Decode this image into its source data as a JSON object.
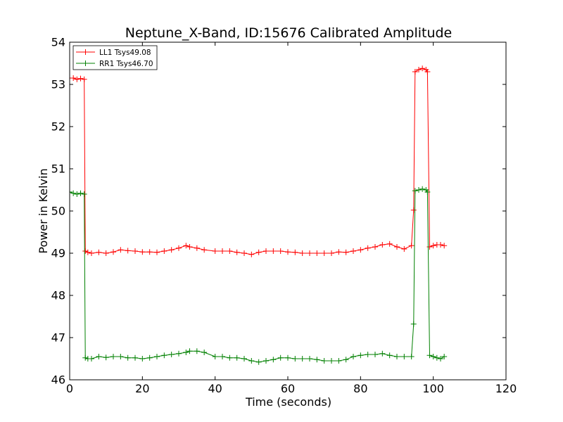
{
  "chart_data": {
    "type": "line",
    "title": "Neptune_X-Band, ID:15676 Calibrated Amplitude",
    "xlabel": "Time (seconds)",
    "ylabel": "Power in Kelvin",
    "xlim": [
      0,
      120
    ],
    "ylim": [
      46,
      54
    ],
    "xticks": [
      0,
      20,
      40,
      60,
      80,
      100,
      120
    ],
    "yticks": [
      46,
      47,
      48,
      49,
      50,
      51,
      52,
      53,
      54
    ],
    "grid": false,
    "legend_position": "top-left",
    "marker": "plus",
    "series": [
      {
        "name": "LL1 Tsys49.08",
        "color": "#ff0000",
        "x": [
          0,
          1,
          2,
          3,
          4,
          4.3,
          5,
          6,
          8,
          10,
          12,
          14,
          16,
          18,
          20,
          22,
          24,
          26,
          28,
          30,
          32,
          33,
          35,
          37,
          40,
          42,
          44,
          46,
          48,
          50,
          52,
          54,
          56,
          58,
          60,
          62,
          64,
          66,
          68,
          70,
          72,
          74,
          76,
          78,
          80,
          82,
          84,
          86,
          88,
          90,
          92,
          94,
          94.6,
          95,
          96,
          97,
          98,
          98.4,
          99,
          100,
          101,
          102,
          103
        ],
        "y": [
          53.15,
          53.15,
          53.12,
          53.14,
          53.12,
          49.05,
          49.02,
          49.0,
          49.02,
          49.0,
          49.03,
          49.08,
          49.06,
          49.05,
          49.03,
          49.03,
          49.02,
          49.05,
          49.08,
          49.12,
          49.18,
          49.15,
          49.12,
          49.08,
          49.05,
          49.05,
          49.05,
          49.02,
          49.0,
          48.97,
          49.02,
          49.05,
          49.05,
          49.05,
          49.03,
          49.02,
          49.0,
          49.0,
          49.0,
          49.0,
          49.0,
          49.03,
          49.02,
          49.05,
          49.08,
          49.12,
          49.15,
          49.2,
          49.22,
          49.15,
          49.1,
          49.18,
          50.02,
          53.3,
          53.35,
          53.38,
          53.35,
          53.3,
          49.15,
          49.18,
          49.2,
          49.2,
          49.18
        ]
      },
      {
        "name": "RR1 Tsys46.70",
        "color": "#008000",
        "x": [
          0,
          1,
          2,
          3,
          4,
          4.3,
          5,
          6,
          8,
          10,
          12,
          14,
          16,
          18,
          20,
          22,
          24,
          26,
          28,
          30,
          32,
          33,
          35,
          37,
          40,
          42,
          44,
          46,
          48,
          50,
          52,
          54,
          56,
          58,
          60,
          62,
          64,
          66,
          68,
          70,
          72,
          74,
          76,
          78,
          80,
          82,
          84,
          86,
          88,
          90,
          92,
          94,
          94.6,
          95,
          96,
          97,
          98,
          98.4,
          99,
          100,
          101,
          102,
          103
        ],
        "y": [
          50.45,
          50.42,
          50.4,
          50.42,
          50.4,
          46.52,
          46.5,
          46.5,
          46.55,
          46.53,
          46.55,
          46.55,
          46.52,
          46.52,
          46.5,
          46.52,
          46.55,
          46.58,
          46.6,
          46.62,
          46.65,
          46.68,
          46.68,
          46.65,
          46.55,
          46.55,
          46.52,
          46.52,
          46.5,
          46.45,
          46.42,
          46.45,
          46.48,
          46.52,
          46.52,
          46.5,
          46.5,
          46.5,
          46.48,
          46.45,
          46.45,
          46.45,
          46.48,
          46.55,
          46.58,
          46.6,
          46.6,
          46.62,
          46.58,
          46.55,
          46.55,
          46.55,
          47.32,
          50.48,
          50.5,
          50.52,
          50.5,
          50.45,
          46.58,
          46.55,
          46.52,
          46.5,
          46.55
        ]
      }
    ]
  }
}
